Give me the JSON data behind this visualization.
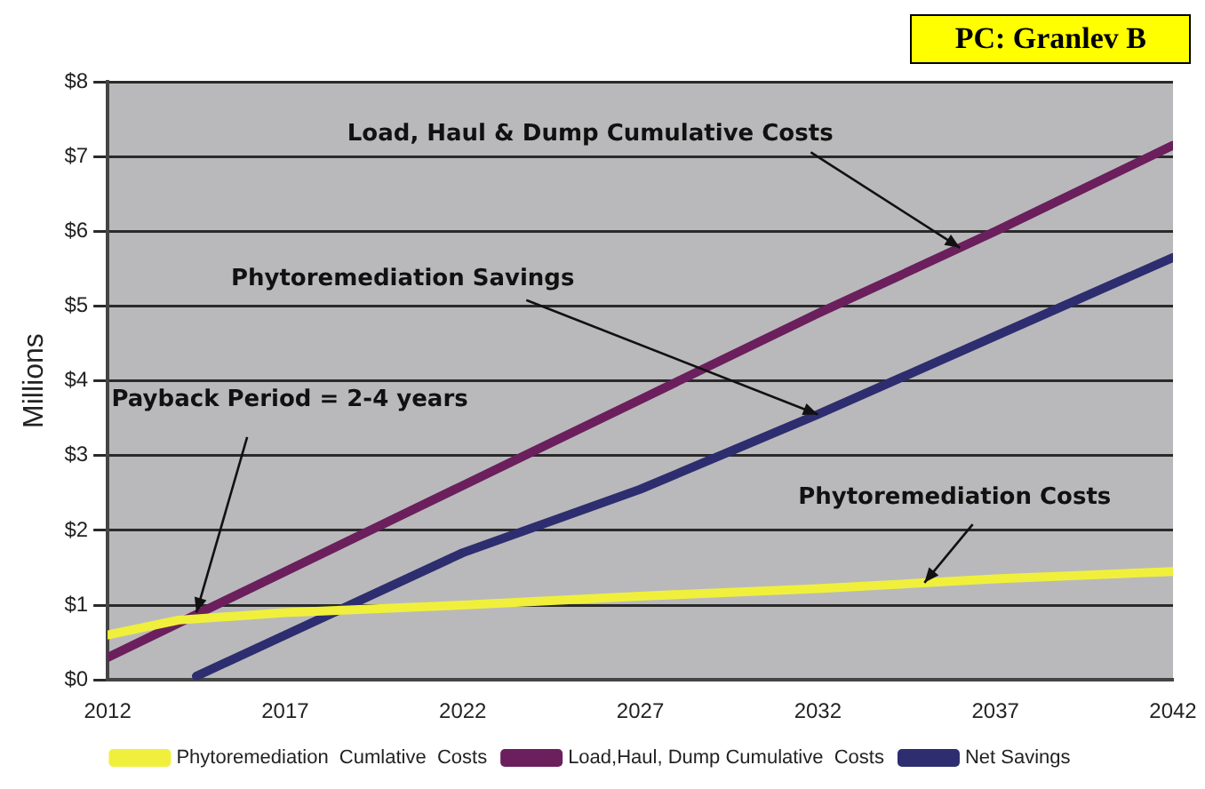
{
  "chart_data": {
    "type": "line",
    "ylabel": "Millions",
    "xlim": [
      2012,
      2042
    ],
    "xticks": [
      2012,
      2017,
      2022,
      2027,
      2032,
      2037,
      2042
    ],
    "ylim": [
      0,
      8
    ],
    "yticks": [
      {
        "value": 0,
        "label": "$0"
      },
      {
        "value": 1,
        "label": "$1"
      },
      {
        "value": 2,
        "label": "$2"
      },
      {
        "value": 3,
        "label": "$3"
      },
      {
        "value": 4,
        "label": "$4"
      },
      {
        "value": 5,
        "label": "$5"
      },
      {
        "value": 6,
        "label": "$6"
      },
      {
        "value": 7,
        "label": "$7"
      },
      {
        "value": 8,
        "label": "$8"
      }
    ],
    "grid": "y",
    "legend": "bottom",
    "marker": "none",
    "line_style": "solid",
    "series": [
      {
        "name": "Phytoremediation  Cumlative  Costs",
        "color": "#f0f03c",
        "x": [
          2012,
          2014,
          2017,
          2022,
          2027,
          2032,
          2037,
          2042
        ],
        "values": [
          0.6,
          0.8,
          0.9,
          1.0,
          1.12,
          1.22,
          1.35,
          1.45
        ]
      },
      {
        "name": "Load,Haul, Dump Cumulative  Costs",
        "color": "#6b1f5c",
        "x": [
          2012,
          2017,
          2022,
          2027,
          2032,
          2037,
          2042
        ],
        "values": [
          0.3,
          1.45,
          2.6,
          3.75,
          4.9,
          6.0,
          7.15
        ]
      },
      {
        "name": "Net Savings",
        "color": "#2d2d70",
        "x": [
          2014.5,
          2017,
          2022,
          2027,
          2032,
          2037,
          2042
        ],
        "values": [
          0.05,
          0.6,
          1.7,
          2.55,
          3.55,
          4.6,
          5.65
        ]
      }
    ],
    "annotations": [
      {
        "text": "Load, Haul & Dump Cumulative Costs",
        "x": 2036,
        "y": 5.78
      },
      {
        "text": "Phytoremediation Savings",
        "x": 2032,
        "y": 3.55
      },
      {
        "text": "Payback Period = 2-4 years",
        "x": 2014.5,
        "y": 0.9
      },
      {
        "text": "Phytoremediation Costs",
        "x": 2035,
        "y": 1.3
      },
      "PC: Granlev B"
    ]
  }
}
